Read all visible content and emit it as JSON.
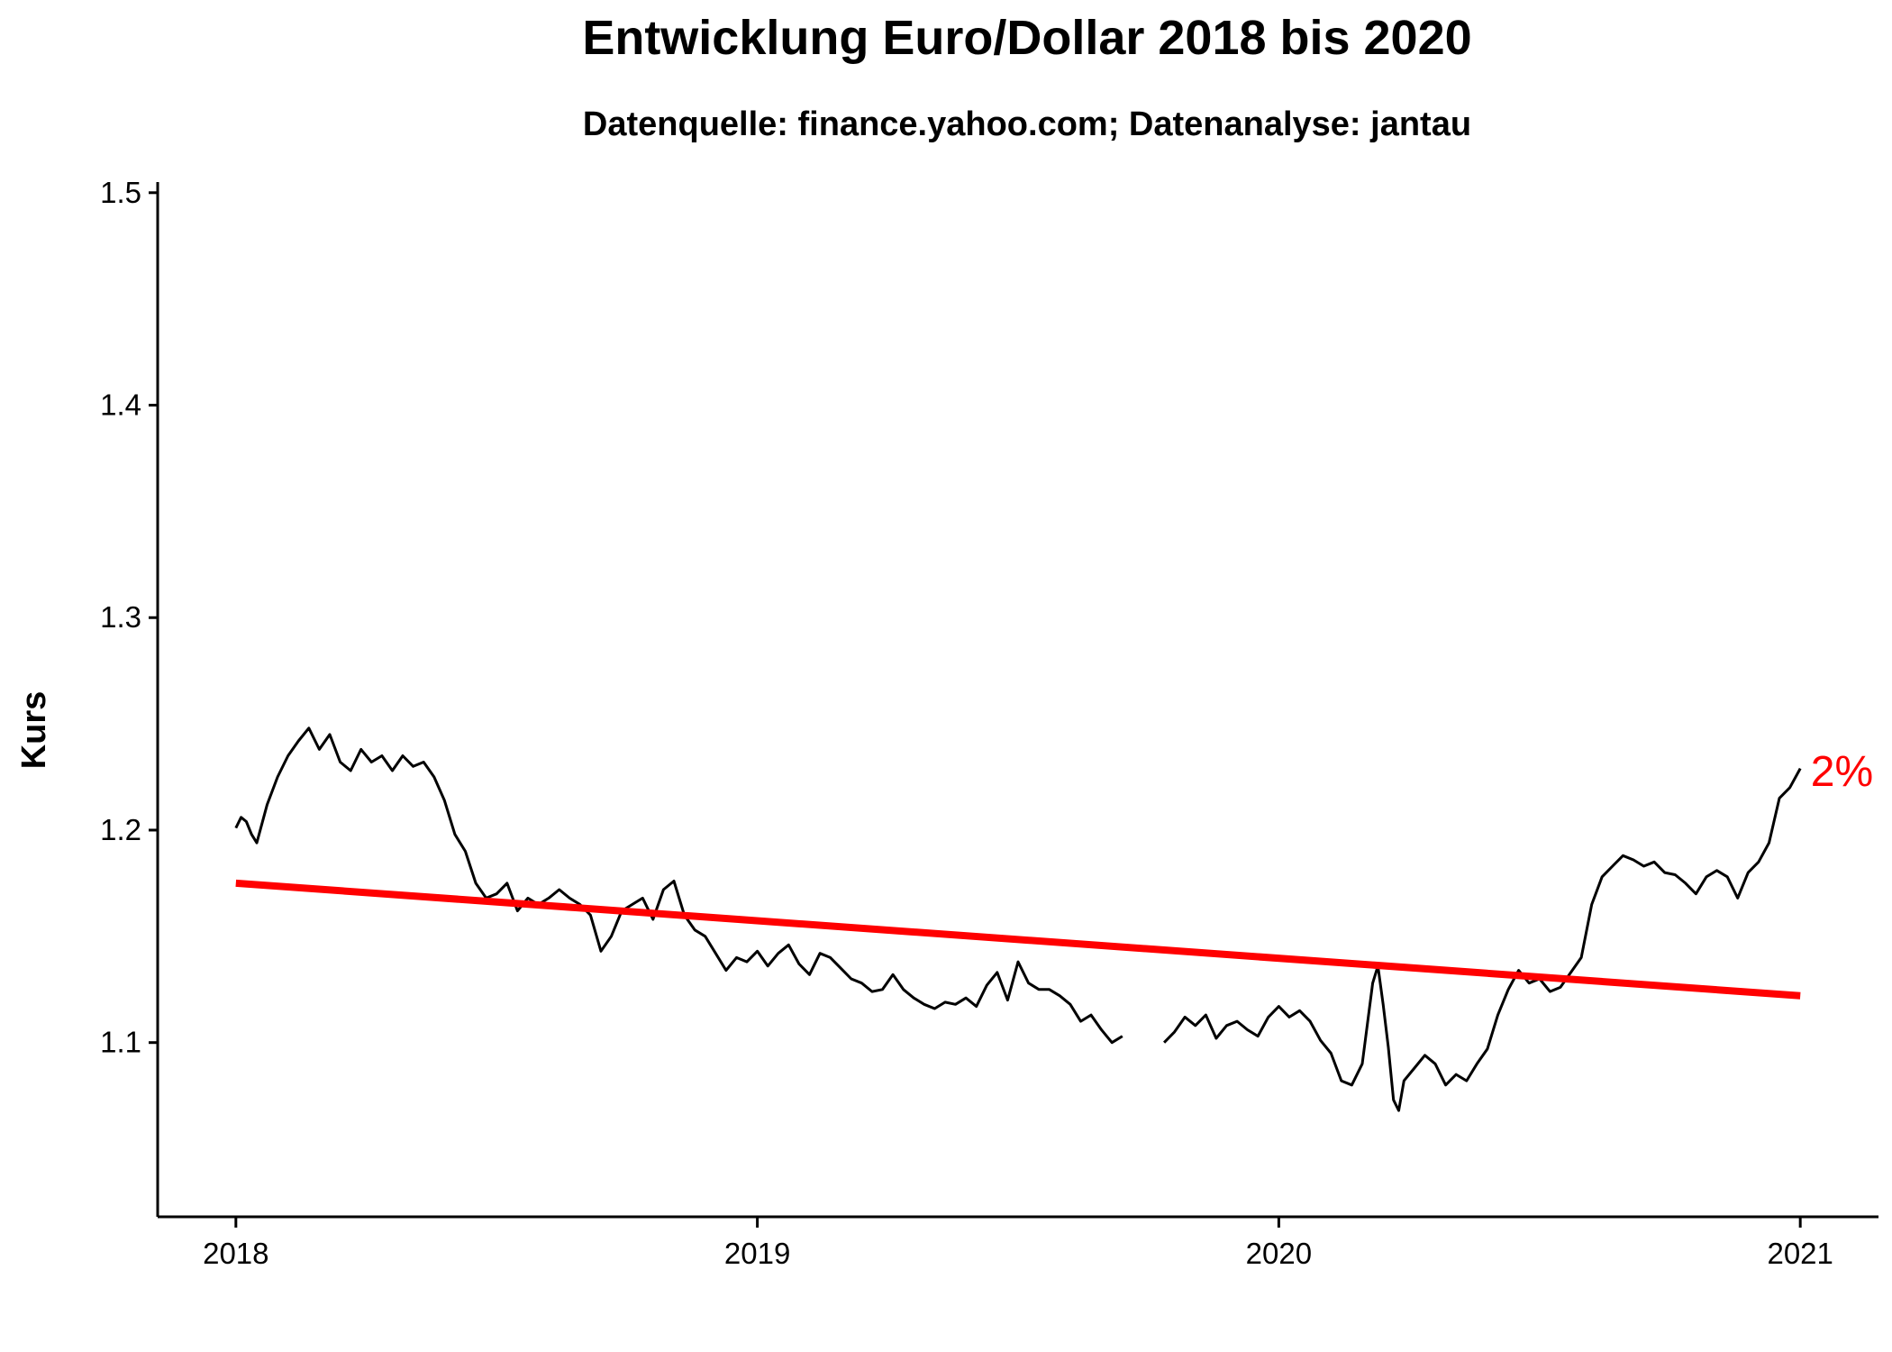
{
  "chart_data": {
    "type": "line",
    "title": "Entwicklung Euro/Dollar 2018 bis 2020",
    "subtitle": "Datenquelle: finance.yahoo.com; Datenanalyse: jantau",
    "xlabel": "",
    "ylabel": "Kurs",
    "xlim": [
      2017.85,
      2021.15
    ],
    "ylim": [
      1.018,
      1.505
    ],
    "x_ticks": [
      2018,
      2019,
      2020,
      2021
    ],
    "x_tick_labels": [
      "2018",
      "2019",
      "2020",
      "2021"
    ],
    "y_ticks": [
      1.1,
      1.2,
      1.3,
      1.4,
      1.5
    ],
    "y_tick_labels": [
      "1.1",
      "1.2",
      "1.3",
      "1.4",
      "1.5"
    ],
    "grid": false,
    "series": [
      {
        "color": "#000000",
        "segments": [
          {
            "x": [
              2018.0,
              2018.01,
              2018.02,
              2018.03,
              2018.04,
              2018.06,
              2018.08,
              2018.1,
              2018.12,
              2018.14,
              2018.16,
              2018.18,
              2018.2,
              2018.22,
              2018.24,
              2018.26,
              2018.28,
              2018.3,
              2018.32,
              2018.34,
              2018.36,
              2018.38,
              2018.4,
              2018.42,
              2018.44,
              2018.46,
              2018.48,
              2018.5,
              2018.52,
              2018.54,
              2018.56,
              2018.58,
              2018.6,
              2018.62,
              2018.64,
              2018.66,
              2018.68,
              2018.7,
              2018.72,
              2018.74,
              2018.76,
              2018.78,
              2018.8,
              2018.82,
              2018.84,
              2018.86,
              2018.88,
              2018.9,
              2018.92,
              2018.94,
              2018.96,
              2018.98,
              2019.0,
              2019.02,
              2019.04,
              2019.06,
              2019.08,
              2019.1,
              2019.12,
              2019.14,
              2019.16,
              2019.18,
              2019.2,
              2019.22,
              2019.24,
              2019.26,
              2019.28,
              2019.3,
              2019.32,
              2019.34,
              2019.36,
              2019.38,
              2019.4,
              2019.42,
              2019.44,
              2019.46,
              2019.48,
              2019.5,
              2019.52,
              2019.54,
              2019.56,
              2019.58,
              2019.6,
              2019.62,
              2019.64,
              2019.66,
              2019.68,
              2019.7
            ],
            "y": [
              1.201,
              1.206,
              1.204,
              1.198,
              1.194,
              1.212,
              1.225,
              1.235,
              1.242,
              1.248,
              1.238,
              1.245,
              1.232,
              1.228,
              1.238,
              1.232,
              1.235,
              1.228,
              1.235,
              1.23,
              1.232,
              1.225,
              1.214,
              1.198,
              1.19,
              1.175,
              1.168,
              1.17,
              1.175,
              1.162,
              1.168,
              1.165,
              1.168,
              1.172,
              1.168,
              1.165,
              1.16,
              1.143,
              1.15,
              1.162,
              1.165,
              1.168,
              1.158,
              1.172,
              1.176,
              1.16,
              1.153,
              1.15,
              1.142,
              1.134,
              1.14,
              1.138,
              1.143,
              1.136,
              1.142,
              1.146,
              1.137,
              1.132,
              1.142,
              1.14,
              1.135,
              1.13,
              1.128,
              1.124,
              1.125,
              1.132,
              1.125,
              1.121,
              1.118,
              1.116,
              1.119,
              1.118,
              1.121,
              1.117,
              1.127,
              1.133,
              1.12,
              1.138,
              1.128,
              1.125,
              1.125,
              1.122,
              1.118,
              1.11,
              1.113,
              1.106,
              1.1,
              1.103
            ]
          },
          {
            "x": [
              2019.78,
              2019.8,
              2019.82,
              2019.84,
              2019.86,
              2019.88,
              2019.9,
              2019.92,
              2019.94,
              2019.96,
              2019.98,
              2020.0,
              2020.02,
              2020.04,
              2020.06,
              2020.08,
              2020.1,
              2020.12,
              2020.14,
              2020.16,
              2020.18,
              2020.19,
              2020.2,
              2020.21,
              2020.22,
              2020.23,
              2020.24,
              2020.26,
              2020.28,
              2020.3,
              2020.32,
              2020.34,
              2020.36,
              2020.38,
              2020.4,
              2020.42,
              2020.44,
              2020.46,
              2020.48,
              2020.5,
              2020.52,
              2020.54,
              2020.56,
              2020.58,
              2020.6,
              2020.62,
              2020.64,
              2020.66,
              2020.68,
              2020.7,
              2020.72,
              2020.74,
              2020.76,
              2020.78,
              2020.8,
              2020.82,
              2020.84,
              2020.86,
              2020.88,
              2020.9,
              2020.92,
              2020.94,
              2020.96,
              2020.98,
              2021.0
            ],
            "y": [
              1.1,
              1.105,
              1.112,
              1.108,
              1.113,
              1.102,
              1.108,
              1.11,
              1.106,
              1.103,
              1.112,
              1.117,
              1.112,
              1.115,
              1.11,
              1.101,
              1.095,
              1.082,
              1.08,
              1.09,
              1.128,
              1.136,
              1.118,
              1.098,
              1.073,
              1.068,
              1.082,
              1.088,
              1.094,
              1.09,
              1.08,
              1.085,
              1.082,
              1.09,
              1.097,
              1.113,
              1.125,
              1.134,
              1.128,
              1.13,
              1.124,
              1.126,
              1.133,
              1.14,
              1.165,
              1.178,
              1.183,
              1.188,
              1.186,
              1.183,
              1.185,
              1.18,
              1.179,
              1.175,
              1.17,
              1.178,
              1.181,
              1.178,
              1.168,
              1.18,
              1.185,
              1.194,
              1.215,
              1.22,
              1.229
            ]
          }
        ]
      },
      {
        "type": "trend",
        "color": "#ff0000",
        "x": [
          2018.0,
          2021.0
        ],
        "y": [
          1.175,
          1.122
        ]
      }
    ],
    "annotations": [
      {
        "text": "2%",
        "x": 2021.02,
        "y": 1.228,
        "color": "#ff0000"
      }
    ]
  }
}
